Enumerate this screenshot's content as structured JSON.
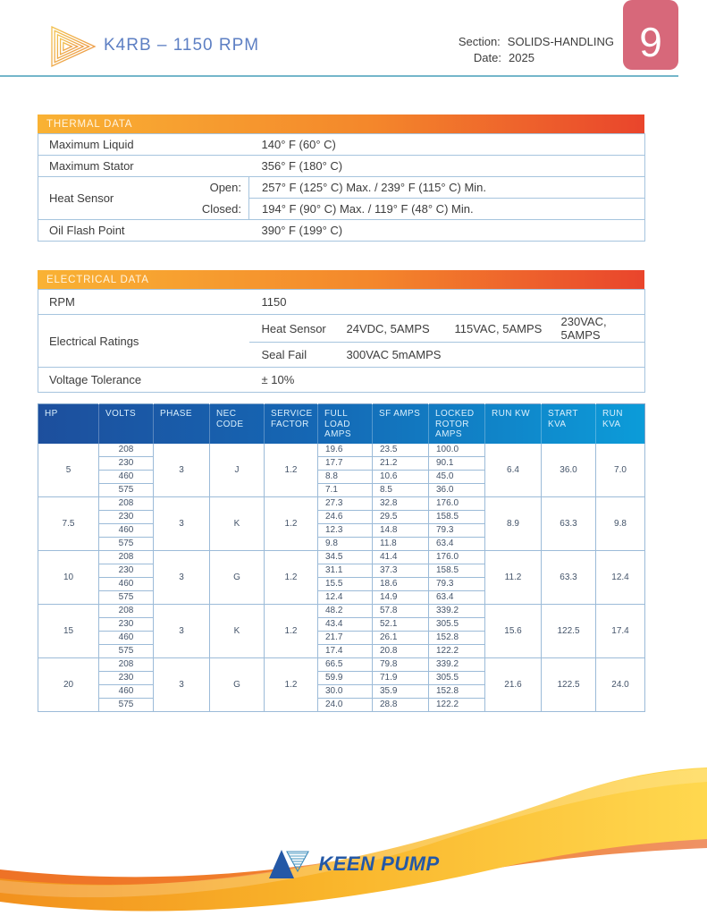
{
  "header": {
    "title": "K4RB – 1150 RPM",
    "section_label": "Section:",
    "section_value": "SOLIDS-HANDLING",
    "date_label": "Date:",
    "date_value": "2025",
    "page_number": "9"
  },
  "thermal": {
    "title": "THERMAL DATA",
    "rows": [
      {
        "label": "Maximum Liquid",
        "sub": "",
        "value": "140° F (60° C)"
      },
      {
        "label": "Maximum Stator",
        "sub": "",
        "value": "356° F (180° C)"
      },
      {
        "label": "Heat Sensor",
        "sub": "Open:",
        "value": "257° F (125° C) Max. / 239° F (115° C) Min."
      },
      {
        "label": "",
        "sub": "Closed:",
        "value": "194° F (90° C) Max. / 119° F (48° C) Min."
      },
      {
        "label": "Oil Flash Point",
        "sub": "",
        "value": "390° F (199° C)"
      }
    ]
  },
  "electrical": {
    "title": "ELECTRICAL DATA",
    "rpm_label": "RPM",
    "rpm_value": "1150",
    "ratings_label": "Electrical Ratings",
    "heat_sensor_label": "Heat Sensor",
    "heat_sensor_values": [
      "24VDC, 5AMPS",
      "115VAC, 5AMPS",
      "230VAC, 5AMPS"
    ],
    "seal_fail_label": "Seal Fail",
    "seal_fail_value": "300VAC 5mAMPS",
    "voltage_label": "Voltage Tolerance",
    "voltage_value": "± 10%"
  },
  "motor_table": {
    "headers": [
      "HP",
      "VOLTS",
      "PHASE",
      "NEC CODE",
      "SERVICE FACTOR",
      "FULL LOAD AMPS",
      "SF AMPS",
      "LOCKED ROTOR AMPS",
      "RUN KW",
      "START KVA",
      "RUN KVA"
    ],
    "groups": [
      {
        "hp": "5",
        "phase": "3",
        "nec": "J",
        "sf": "1.2",
        "runkw": "6.4",
        "startkva": "36.0",
        "runkva": "7.0",
        "rows": [
          [
            "208",
            "19.6",
            "23.5",
            "100.0"
          ],
          [
            "230",
            "17.7",
            "21.2",
            "90.1"
          ],
          [
            "460",
            "8.8",
            "10.6",
            "45.0"
          ],
          [
            "575",
            "7.1",
            "8.5",
            "36.0"
          ]
        ]
      },
      {
        "hp": "7.5",
        "phase": "3",
        "nec": "K",
        "sf": "1.2",
        "runkw": "8.9",
        "startkva": "63.3",
        "runkva": "9.8",
        "rows": [
          [
            "208",
            "27.3",
            "32.8",
            "176.0"
          ],
          [
            "230",
            "24.6",
            "29.5",
            "158.5"
          ],
          [
            "460",
            "12.3",
            "14.8",
            "79.3"
          ],
          [
            "575",
            "9.8",
            "11.8",
            "63.4"
          ]
        ]
      },
      {
        "hp": "10",
        "phase": "3",
        "nec": "G",
        "sf": "1.2",
        "runkw": "11.2",
        "startkva": "63.3",
        "runkva": "12.4",
        "rows": [
          [
            "208",
            "34.5",
            "41.4",
            "176.0"
          ],
          [
            "230",
            "31.1",
            "37.3",
            "158.5"
          ],
          [
            "460",
            "15.5",
            "18.6",
            "79.3"
          ],
          [
            "575",
            "12.4",
            "14.9",
            "63.4"
          ]
        ]
      },
      {
        "hp": "15",
        "phase": "3",
        "nec": "K",
        "sf": "1.2",
        "runkw": "15.6",
        "startkva": "122.5",
        "runkva": "17.4",
        "rows": [
          [
            "208",
            "48.2",
            "57.8",
            "339.2"
          ],
          [
            "230",
            "43.4",
            "52.1",
            "305.5"
          ],
          [
            "460",
            "21.7",
            "26.1",
            "152.8"
          ],
          [
            "575",
            "17.4",
            "20.8",
            "122.2"
          ]
        ]
      },
      {
        "hp": "20",
        "phase": "3",
        "nec": "G",
        "sf": "1.2",
        "runkw": "21.6",
        "startkva": "122.5",
        "runkva": "24.0",
        "rows": [
          [
            "208",
            "66.5",
            "79.8",
            "339.2"
          ],
          [
            "230",
            "59.9",
            "71.9",
            "305.5"
          ],
          [
            "460",
            "30.0",
            "35.9",
            "152.8"
          ],
          [
            "575",
            "24.0",
            "28.8",
            "122.2"
          ]
        ]
      }
    ]
  },
  "footer": {
    "brand": "KEEN PUMP"
  },
  "colors": {
    "accent_teal": "#74b6ca",
    "accent_pink": "#d7687a",
    "title_blue": "#5d7fc3",
    "bar_gradient_start": "#f9b234",
    "bar_gradient_end": "#e9452c",
    "motor_header_start": "#1d4f9d",
    "motor_header_end": "#0c9cd9",
    "table_border": "#a6c4de",
    "logo_blue": "#2458a6"
  }
}
